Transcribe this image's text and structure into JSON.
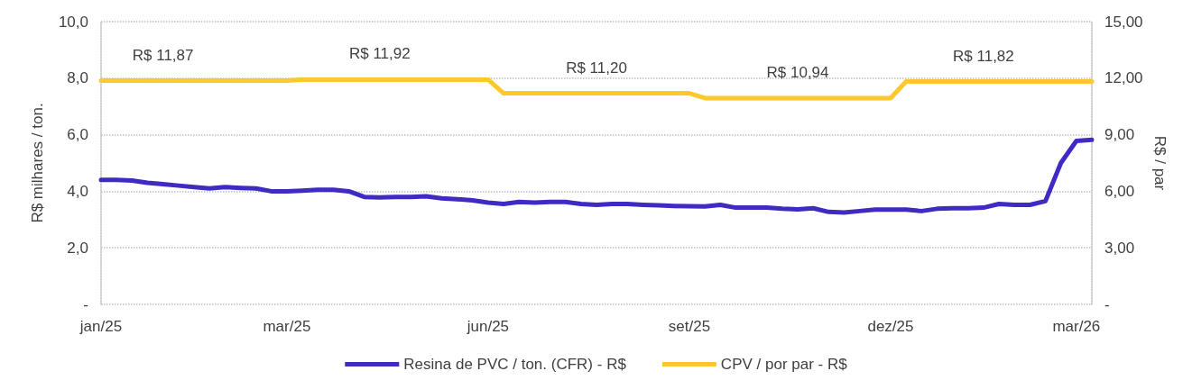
{
  "chart_data": {
    "type": "line",
    "ylabel": "R$ milhares / ton.",
    "y2label": "R$ / par",
    "categories": [
      "jan/25",
      null,
      null,
      null,
      null,
      null,
      null,
      null,
      null,
      null,
      null,
      null,
      "mar/25",
      null,
      null,
      null,
      null,
      null,
      null,
      null,
      null,
      null,
      null,
      null,
      null,
      "jun/25",
      null,
      null,
      null,
      null,
      null,
      null,
      null,
      null,
      null,
      null,
      null,
      null,
      "set/25",
      null,
      null,
      null,
      null,
      null,
      null,
      null,
      null,
      null,
      null,
      null,
      null,
      "dez/25",
      null,
      null,
      null,
      null,
      null,
      null,
      null,
      null,
      null,
      null,
      null,
      "mar/26",
      null
    ],
    "series": [
      {
        "name": "Resina de PVC / ton. (CFR) - R$",
        "color": "#3f2ac4",
        "values": [
          4.4,
          4.4,
          4.38,
          4.3,
          4.25,
          4.2,
          4.15,
          4.1,
          4.15,
          4.12,
          4.1,
          4.0,
          4.0,
          4.02,
          4.05,
          4.05,
          4.0,
          3.8,
          3.78,
          3.8,
          3.8,
          3.82,
          3.75,
          3.72,
          3.68,
          3.6,
          3.55,
          3.62,
          3.6,
          3.62,
          3.62,
          3.55,
          3.52,
          3.55,
          3.55,
          3.52,
          3.5,
          3.48,
          3.47,
          3.46,
          3.52,
          3.42,
          3.42,
          3.42,
          3.38,
          3.36,
          3.4,
          3.27,
          3.25,
          3.3,
          3.35,
          3.35,
          3.35,
          3.3,
          3.38,
          3.4,
          3.4,
          3.42,
          3.55,
          3.52,
          3.52,
          3.65,
          5.0,
          5.78,
          5.82
        ]
      },
      {
        "name": "CPV / por par - R$",
        "color": "#fcc82b",
        "axis": "y2",
        "values": [
          11.87,
          11.87,
          11.87,
          11.87,
          11.87,
          11.87,
          11.87,
          11.87,
          11.87,
          11.87,
          11.87,
          11.87,
          11.87,
          11.92,
          11.92,
          11.92,
          11.92,
          11.92,
          11.92,
          11.92,
          11.92,
          11.92,
          11.92,
          11.92,
          11.92,
          11.92,
          11.2,
          11.2,
          11.2,
          11.2,
          11.2,
          11.2,
          11.2,
          11.2,
          11.2,
          11.2,
          11.2,
          11.2,
          11.2,
          10.94,
          10.94,
          10.94,
          10.94,
          10.94,
          10.94,
          10.94,
          10.94,
          10.94,
          10.94,
          10.94,
          10.94,
          10.94,
          11.82,
          11.82,
          11.82,
          11.82,
          11.82,
          11.82,
          11.82,
          11.82,
          11.82,
          11.82,
          11.82,
          11.82,
          11.82
        ],
        "value_labels": [
          null,
          null,
          null,
          null,
          "R$ 11,87",
          null,
          null,
          null,
          null,
          null,
          null,
          null,
          null,
          null,
          null,
          null,
          null,
          null,
          "R$ 11,92",
          null,
          null,
          null,
          null,
          null,
          null,
          null,
          null,
          null,
          null,
          null,
          null,
          null,
          "R$ 11,20",
          null,
          null,
          null,
          null,
          null,
          null,
          null,
          null,
          null,
          null,
          null,
          null,
          "R$ 10,94",
          null,
          null,
          null,
          null,
          null,
          null,
          null,
          null,
          null,
          null,
          null,
          "R$ 11,82",
          null,
          null,
          null,
          null,
          null,
          null,
          null
        ]
      }
    ],
    "ylim": [
      0,
      10
    ],
    "yticks": [
      {
        "value": 0,
        "label": "-"
      },
      {
        "value": 2,
        "label": "2,0"
      },
      {
        "value": 4,
        "label": "4,0"
      },
      {
        "value": 6,
        "label": "6,0"
      },
      {
        "value": 8,
        "label": "8,0"
      },
      {
        "value": 10,
        "label": "10,0"
      }
    ],
    "y2lim": [
      0,
      15
    ],
    "y2ticks": [
      {
        "value": 0,
        "label": "-"
      },
      {
        "value": 3,
        "label": "3,00"
      },
      {
        "value": 6,
        "label": "6,00"
      },
      {
        "value": 9,
        "label": "9,00"
      },
      {
        "value": 12,
        "label": "12,00"
      },
      {
        "value": 15,
        "label": "15,00"
      }
    ],
    "grid": "y",
    "legend": "bottom",
    "marker": "none",
    "line_style": "solid"
  }
}
